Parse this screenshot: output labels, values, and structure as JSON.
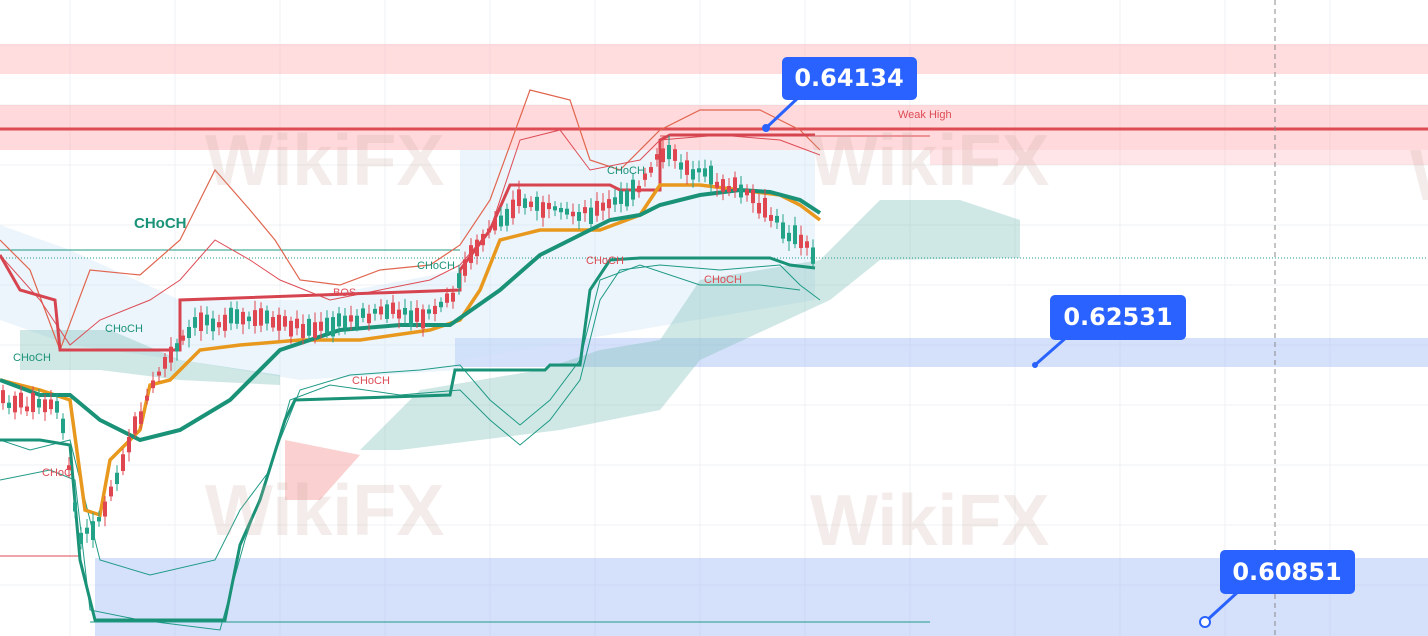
{
  "price_labels": [
    "0.64134",
    "0.62531",
    "0.60851"
  ],
  "annotations": [
    "Weak High",
    "CHoCH",
    "CHoCH",
    "CHoCH",
    "CHoC",
    "CHoCH",
    "CHoCH",
    "CHoCH",
    "CHoCH",
    "CHoCH",
    "BOS"
  ],
  "watermark": "WikiFX"
}
